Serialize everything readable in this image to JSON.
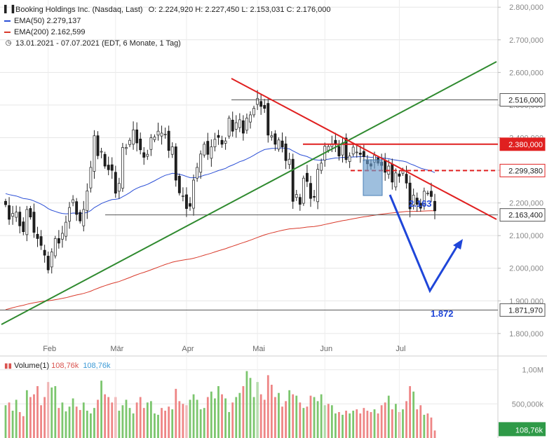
{
  "header": {
    "title": "Booking Holdings Inc. (Nasdaq, Last)",
    "ohlc": "O: 2.224,920  H: 2.227,450  L: 2.153,031  C: 2.176,000",
    "ema50": "EMA(50)  2.279,137",
    "ema200": "EMA(200)  2.162,599",
    "range": "13.01.2021 - 07.07.2021   (EDT, 6 Monate, 1 Tag)"
  },
  "volume_legend": {
    "label": "Volume(1)",
    "value1": "108,76k",
    "value2": "108,76k"
  },
  "colors": {
    "up": "#2e9e3a",
    "down": "#d03030",
    "ema50": "#2b4fd6",
    "ema200": "#d93a2b",
    "trend_up": "#2f8a2f",
    "trend_down": "#e02020",
    "projection": "#1f46d9",
    "vol_up": "#7cc66e",
    "vol_down": "#ee8585",
    "highlight": "#6a9ccc"
  },
  "chart_data": [
    {
      "type": "candlestick",
      "title": "Booking Holdings Inc. (Nasdaq, Last)",
      "x_labels": [
        "Feb",
        "Mär",
        "Apr",
        "Mai",
        "Jun",
        "Jul"
      ],
      "y_ticks": [
        "2.800,000",
        "2.700,000",
        "2.600,000",
        "2.500,000",
        "2.400,000",
        "2.300,000",
        "2.200,000",
        "2.100,000",
        "2.000,000",
        "1.900,000",
        "1.800,000"
      ],
      "y_tick_values": [
        2800,
        2700,
        2600,
        2500,
        2400,
        2300,
        2200,
        2100,
        2000,
        1900,
        1800
      ],
      "ylim": [
        1731,
        2822
      ],
      "n_bars": 122,
      "month_start_bars": [
        12,
        31,
        51,
        71,
        90,
        111
      ],
      "closes": [
        2195,
        2150,
        2168,
        2172,
        2130,
        2112,
        2180,
        2157,
        2110,
        2091,
        2070,
        2040,
        1995,
        2050,
        2091,
        2077,
        2107,
        2141,
        2186,
        2210,
        2165,
        2145,
        2180,
        2237,
        2309,
        2406,
        2345,
        2358,
        2313,
        2302,
        2300,
        2230,
        2260,
        2370,
        2370,
        2392,
        2424,
        2384,
        2363,
        2340,
        2349,
        2400,
        2402,
        2420,
        2414,
        2411,
        2361,
        2372,
        2270,
        2231,
        2222,
        2183,
        2190,
        2270,
        2309,
        2350,
        2380,
        2349,
        2372,
        2395,
        2401,
        2380,
        2390,
        2460,
        2420,
        2446,
        2455,
        2414,
        2460,
        2470,
        2490,
        2520,
        2496,
        2490,
        2408,
        2406,
        2380,
        2393,
        2372,
        2330,
        2334,
        2205,
        2226,
        2196,
        2276,
        2266,
        2214,
        2219,
        2303,
        2322,
        2374,
        2373,
        2380,
        2382,
        2344,
        2384,
        2333,
        2344,
        2371,
        2356,
        2349,
        2342,
        2320,
        2313,
        2346,
        2322,
        2315,
        2294,
        2313,
        2264,
        2292,
        2282,
        2300,
        2261,
        2182,
        2224,
        2196,
        2184,
        2236,
        2230,
        2220,
        2176
      ],
      "closes_note": "approximate daily closes read from chart",
      "ema50": "blue moving average line",
      "ema200": "red moving average line"
    },
    {
      "type": "bar",
      "title": "Volume(1)",
      "y_ticks": [
        "1,00M",
        "500,000k"
      ],
      "y_tick_values": [
        1000,
        500
      ],
      "ylim": [
        0,
        1160
      ],
      "unit": "k",
      "values": [
        480,
        520,
        400,
        560,
        380,
        320,
        700,
        600,
        640,
        760,
        480,
        600,
        820,
        740,
        760,
        440,
        520,
        390,
        460,
        580,
        460,
        410,
        520,
        400,
        360,
        440,
        560,
        840,
        640,
        600,
        520,
        600,
        400,
        480,
        560,
        440,
        360,
        520,
        600,
        440,
        520,
        540,
        360,
        340,
        440,
        400,
        460,
        420,
        720,
        540,
        500,
        480,
        560,
        640,
        560,
        420,
        440,
        600,
        680,
        580,
        760,
        640,
        580,
        380,
        520,
        600,
        660,
        760,
        980,
        880,
        600,
        820,
        640,
        560,
        920,
        780,
        600,
        660,
        460,
        540,
        700,
        640,
        620,
        520,
        440,
        460,
        620,
        600,
        540,
        640,
        480,
        500,
        480,
        360,
        380,
        340,
        400,
        360,
        400,
        420,
        360,
        440,
        400,
        380,
        420,
        360,
        480,
        520,
        620,
        420,
        500,
        380,
        420,
        540,
        760,
        680,
        420,
        480,
        340,
        360,
        300,
        110
      ]
    },
    {
      "type": "annotations",
      "price_labels": [
        "2.516,000",
        "2.380,000",
        "2.299,380",
        "2.163,400",
        "1.871,970",
        "2.200,000"
      ],
      "price_label_values": [
        2516,
        2380,
        2299.38,
        2163.4,
        1871.97,
        2200
      ],
      "projection_labels": [
        "2.163",
        "1.872"
      ]
    }
  ]
}
